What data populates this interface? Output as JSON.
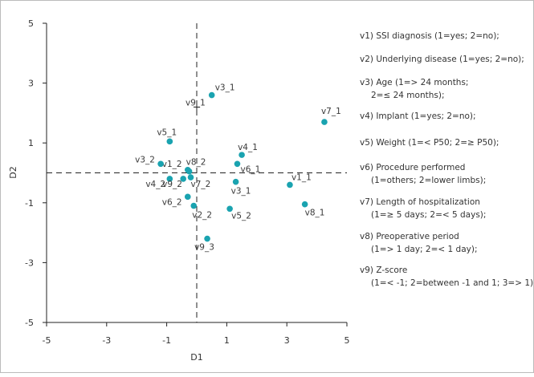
{
  "chart_data": {
    "type": "scatter",
    "xlabel": "D1",
    "ylabel": "D2",
    "xlim": [
      -5,
      5
    ],
    "ylim": [
      -5,
      5
    ],
    "xticks": [
      "-5",
      "-3",
      "-1",
      "1",
      "3",
      "5"
    ],
    "yticks": [
      "5",
      "3",
      "1",
      "-1",
      "-3",
      "-5"
    ],
    "reference_lines": {
      "x": 0,
      "y": 0,
      "style": "dashed"
    },
    "marker_color": "#1aa3b0",
    "points": [
      {
        "label": "v1_1",
        "x": 3.1,
        "y": -0.4,
        "mark": "dot"
      },
      {
        "label": "v1_2",
        "x": -0.3,
        "y": 0.1,
        "mark": "dot"
      },
      {
        "label": "v2_2",
        "x": -0.1,
        "y": -1.1,
        "mark": "dot"
      },
      {
        "label": "v3_1",
        "x": 1.3,
        "y": -0.3,
        "mark": "dot"
      },
      {
        "label": "v3_1",
        "x": 0.5,
        "y": 2.6,
        "mark": "dot"
      },
      {
        "label": "v3_2",
        "x": -1.2,
        "y": 0.3,
        "mark": "dot"
      },
      {
        "label": "v4_1",
        "x": 1.5,
        "y": 0.6,
        "mark": "dot"
      },
      {
        "label": "v4_2",
        "x": -0.9,
        "y": -0.2,
        "mark": "dot"
      },
      {
        "label": "v5_1",
        "x": -0.9,
        "y": 1.05,
        "mark": "dot"
      },
      {
        "label": "v5_2",
        "x": 1.1,
        "y": -1.2,
        "mark": "dot"
      },
      {
        "label": "v6_1",
        "x": 1.35,
        "y": 0.3,
        "mark": "dot"
      },
      {
        "label": "v6_2",
        "x": -0.3,
        "y": -0.8,
        "mark": "dot"
      },
      {
        "label": "v7_1",
        "x": 4.25,
        "y": 1.7,
        "mark": "dot"
      },
      {
        "label": "v7_2",
        "x": -0.2,
        "y": -0.15,
        "mark": "dot"
      },
      {
        "label": "v8_1",
        "x": 3.6,
        "y": -1.05,
        "mark": "dot"
      },
      {
        "label": "v8_2",
        "x": -0.25,
        "y": 0.05,
        "mark": "dot"
      },
      {
        "label": "v9_1",
        "x": 0.0,
        "y": 2.2,
        "mark": "cross"
      },
      {
        "label": "v9_2",
        "x": -0.45,
        "y": -0.2,
        "mark": "dot"
      },
      {
        "label": "v9_3",
        "x": 0.35,
        "y": -2.2,
        "mark": "dot"
      }
    ]
  },
  "legend": [
    {
      "lines": [
        "v1) SSI diagnosis (1=yes; 2=no);"
      ]
    },
    {
      "lines": [
        "v2) Underlying disease (1=yes; 2=no);"
      ]
    },
    {
      "lines": [
        "v3) Age (1=> 24 months;",
        "2=≤ 24 months);"
      ]
    },
    {
      "lines": [
        "v4) Implant (1=yes; 2=no);"
      ]
    },
    {
      "lines": [
        "v5) Weight (1=< P50; 2=≥ P50);"
      ]
    },
    {
      "lines": [
        "v6) Procedure performed",
        "(1=others; 2=lower limbs);"
      ]
    },
    {
      "lines": [
        "v7) Length of hospitalization",
        "(1=≥ 5 days; 2=< 5 days);"
      ]
    },
    {
      "lines": [
        "v8) Preoperative period",
        "(1=> 1 day; 2=< 1 day);"
      ]
    },
    {
      "lines": [
        "v9) Z-score",
        "(1=< -1; 2=between -1 and 1; 3=> 1)."
      ]
    }
  ]
}
